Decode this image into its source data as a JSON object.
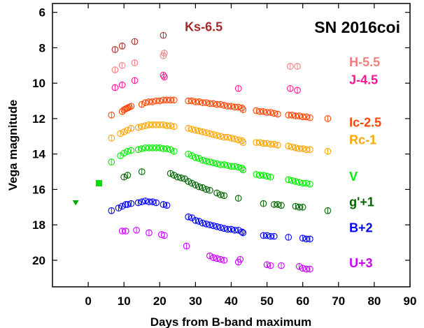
{
  "chart_data": {
    "type": "scatter",
    "title": "SN 2016coi",
    "xlabel": "Days from B-band maximum",
    "ylabel": "Vega magnitude",
    "xlim": [
      -10,
      90
    ],
    "ylim": [
      21.5,
      5.5
    ],
    "y_inverted": true,
    "grid": false,
    "legend": "right-side labels",
    "xticks": [
      0,
      10,
      20,
      30,
      40,
      50,
      60,
      70,
      80,
      90
    ],
    "yticks": [
      6,
      8,
      10,
      12,
      14,
      16,
      18,
      20
    ],
    "series": [
      {
        "name": "Ks-6.5",
        "color": "#a52a2a",
        "marker": "circle-open",
        "points": [
          [
            7.5,
            8.1
          ],
          [
            9.5,
            7.9
          ],
          [
            13,
            7.65
          ],
          [
            21,
            7.3
          ]
        ]
      },
      {
        "name": "H-5.5",
        "color": "#f08080",
        "marker": "circle-open",
        "points": [
          [
            7.5,
            9.25
          ],
          [
            9.5,
            9.0
          ],
          [
            13,
            8.85
          ],
          [
            21,
            8.45
          ],
          [
            21.3,
            8.3
          ],
          [
            56.5,
            9.05
          ],
          [
            58.5,
            9.05
          ]
        ]
      },
      {
        "name": "J-4.5",
        "color": "#ff1493",
        "marker": "circle-open",
        "points": [
          [
            7.5,
            10.25
          ],
          [
            9.5,
            10.1
          ],
          [
            13,
            9.85
          ],
          [
            21,
            9.55
          ],
          [
            21.3,
            9.65
          ],
          [
            42,
            10.3
          ],
          [
            56.5,
            10.3
          ],
          [
            58.5,
            10.4
          ]
        ]
      },
      {
        "name": "Ic-2.5",
        "color": "#ff4500",
        "marker": "circle-open",
        "points": [
          [
            6.5,
            11.8
          ],
          [
            9.5,
            11.6
          ],
          [
            10,
            11.5
          ],
          [
            10.5,
            11.45
          ],
          [
            11,
            11.4
          ],
          [
            11.5,
            11.35
          ],
          [
            12,
            11.3
          ],
          [
            15,
            11.2
          ],
          [
            16,
            11.1
          ],
          [
            17,
            11.05
          ],
          [
            18,
            11.05
          ],
          [
            19,
            11.0
          ],
          [
            20,
            11.0
          ],
          [
            21,
            10.95
          ],
          [
            22,
            10.95
          ],
          [
            23,
            10.95
          ],
          [
            24,
            10.95
          ],
          [
            28,
            11.0
          ],
          [
            29,
            11.0
          ],
          [
            30,
            11.05
          ],
          [
            31,
            11.05
          ],
          [
            32,
            11.1
          ],
          [
            33,
            11.1
          ],
          [
            34,
            11.15
          ],
          [
            35,
            11.15
          ],
          [
            36,
            11.2
          ],
          [
            37,
            11.2
          ],
          [
            38,
            11.25
          ],
          [
            39,
            11.3
          ],
          [
            40,
            11.3
          ],
          [
            41,
            11.35
          ],
          [
            42,
            11.35
          ],
          [
            43,
            11.4
          ],
          [
            43.3,
            11.5
          ],
          [
            47,
            11.55
          ],
          [
            48,
            11.6
          ],
          [
            49,
            11.6
          ],
          [
            50,
            11.65
          ],
          [
            51,
            11.65
          ],
          [
            52,
            11.7
          ],
          [
            53,
            11.75
          ],
          [
            56,
            11.8
          ],
          [
            57,
            11.8
          ],
          [
            58,
            11.85
          ],
          [
            59,
            11.85
          ],
          [
            60,
            11.9
          ],
          [
            61,
            11.9
          ],
          [
            62,
            11.95
          ],
          [
            67,
            12.0
          ]
        ]
      },
      {
        "name": "Rc-1",
        "color": "#ffa500",
        "marker": "circle-open",
        "points": [
          [
            6.5,
            13.1
          ],
          [
            9,
            12.85
          ],
          [
            10,
            12.75
          ],
          [
            11,
            12.65
          ],
          [
            12,
            12.55
          ],
          [
            14,
            12.5
          ],
          [
            15,
            12.45
          ],
          [
            16,
            12.4
          ],
          [
            17,
            12.35
          ],
          [
            18,
            12.35
          ],
          [
            19,
            12.35
          ],
          [
            20,
            12.35
          ],
          [
            21,
            12.35
          ],
          [
            22,
            12.4
          ],
          [
            23,
            12.4
          ],
          [
            24,
            12.45
          ],
          [
            28,
            12.55
          ],
          [
            29,
            12.6
          ],
          [
            30,
            12.65
          ],
          [
            31,
            12.7
          ],
          [
            32,
            12.75
          ],
          [
            33,
            12.8
          ],
          [
            34,
            12.85
          ],
          [
            35,
            12.9
          ],
          [
            36,
            12.95
          ],
          [
            37,
            13.0
          ],
          [
            38,
            13.05
          ],
          [
            39,
            13.05
          ],
          [
            40,
            13.1
          ],
          [
            41,
            13.15
          ],
          [
            42,
            13.2
          ],
          [
            43,
            13.25
          ],
          [
            43.3,
            13.35
          ],
          [
            47,
            13.35
          ],
          [
            48,
            13.35
          ],
          [
            49,
            13.4
          ],
          [
            50,
            13.4
          ],
          [
            51,
            13.45
          ],
          [
            52,
            13.45
          ],
          [
            53,
            13.5
          ],
          [
            56,
            13.55
          ],
          [
            57,
            13.6
          ],
          [
            58,
            13.65
          ],
          [
            59,
            13.7
          ],
          [
            60,
            13.7
          ],
          [
            61,
            13.75
          ],
          [
            62,
            13.75
          ],
          [
            67,
            13.85
          ]
        ]
      },
      {
        "name": "V",
        "color": "#00ee00",
        "marker": "circle-open",
        "points": [
          [
            6.5,
            14.45
          ],
          [
            9,
            14.1
          ],
          [
            10,
            13.95
          ],
          [
            11,
            13.85
          ],
          [
            12,
            13.8
          ],
          [
            14,
            13.75
          ],
          [
            15,
            13.7
          ],
          [
            16,
            13.65
          ],
          [
            17,
            13.65
          ],
          [
            18,
            13.65
          ],
          [
            19,
            13.65
          ],
          [
            20,
            13.65
          ],
          [
            21,
            13.7
          ],
          [
            22,
            13.7
          ],
          [
            23,
            13.75
          ],
          [
            24,
            13.85
          ],
          [
            28,
            14.0
          ],
          [
            29,
            14.1
          ],
          [
            30,
            14.2
          ],
          [
            31,
            14.25
          ],
          [
            32,
            14.35
          ],
          [
            33,
            14.4
          ],
          [
            34,
            14.45
          ],
          [
            35,
            14.5
          ],
          [
            36,
            14.55
          ],
          [
            37,
            14.6
          ],
          [
            38,
            14.6
          ],
          [
            39,
            14.65
          ],
          [
            40,
            14.7
          ],
          [
            41,
            14.7
          ],
          [
            42,
            14.75
          ],
          [
            43,
            14.8
          ],
          [
            43.3,
            14.9
          ],
          [
            47,
            15.15
          ],
          [
            48,
            15.2
          ],
          [
            49,
            15.2
          ],
          [
            50,
            15.25
          ],
          [
            51,
            15.3
          ],
          [
            56,
            15.45
          ],
          [
            57,
            15.5
          ],
          [
            58,
            15.55
          ],
          [
            59,
            15.6
          ],
          [
            60,
            15.65
          ],
          [
            61,
            15.65
          ],
          [
            62,
            15.7
          ]
        ]
      },
      {
        "name": "g'+1",
        "color": "#006400",
        "marker": "circle-open",
        "points": [
          [
            10,
            15.3
          ],
          [
            11,
            15.2
          ],
          [
            15,
            15.0
          ],
          [
            23,
            15.1
          ],
          [
            24,
            15.2
          ],
          [
            25,
            15.3
          ],
          [
            26,
            15.35
          ],
          [
            27,
            15.4
          ],
          [
            28,
            15.55
          ],
          [
            29,
            15.65
          ],
          [
            30,
            15.75
          ],
          [
            31,
            15.85
          ],
          [
            32,
            15.9
          ],
          [
            33,
            16.0
          ],
          [
            34,
            16.05
          ],
          [
            36,
            16.2
          ],
          [
            37,
            16.3
          ],
          [
            38,
            16.35
          ],
          [
            42,
            16.5
          ],
          [
            49,
            16.8
          ],
          [
            52,
            16.85
          ],
          [
            53,
            16.85
          ],
          [
            54,
            16.9
          ],
          [
            58,
            16.95
          ],
          [
            59,
            17.0
          ],
          [
            60,
            17.0
          ],
          [
            67,
            17.2
          ]
        ]
      },
      {
        "name": "B+2",
        "color": "#0000ff",
        "marker": "circle-open",
        "points": [
          [
            6.5,
            17.2
          ],
          [
            8.5,
            17.05
          ],
          [
            9.5,
            16.95
          ],
          [
            10.5,
            16.85
          ],
          [
            11,
            16.85
          ],
          [
            12,
            16.8
          ],
          [
            14,
            16.75
          ],
          [
            15,
            16.7
          ],
          [
            16,
            16.65
          ],
          [
            17,
            16.7
          ],
          [
            18,
            16.7
          ],
          [
            19,
            16.75
          ],
          [
            21,
            16.85
          ],
          [
            22,
            16.9
          ],
          [
            28,
            17.55
          ],
          [
            29,
            17.6
          ],
          [
            30,
            17.75
          ],
          [
            31,
            17.8
          ],
          [
            32,
            17.9
          ],
          [
            33,
            17.95
          ],
          [
            34,
            18.0
          ],
          [
            35,
            18.05
          ],
          [
            36,
            18.1
          ],
          [
            37,
            18.15
          ],
          [
            38,
            18.2
          ],
          [
            39,
            18.25
          ],
          [
            40,
            18.25
          ],
          [
            41,
            18.3
          ],
          [
            42,
            18.3
          ],
          [
            43,
            18.4
          ],
          [
            43.3,
            18.45
          ],
          [
            49,
            18.6
          ],
          [
            50,
            18.6
          ],
          [
            51,
            18.65
          ],
          [
            52,
            18.65
          ],
          [
            56,
            18.7
          ],
          [
            60,
            18.75
          ],
          [
            61,
            18.8
          ],
          [
            62,
            18.8
          ]
        ]
      },
      {
        "name": "U+3",
        "color": "#cc00ff",
        "marker": "circle-open",
        "points": [
          [
            9.5,
            18.35
          ],
          [
            10.5,
            18.35
          ],
          [
            13.5,
            18.3
          ],
          [
            17,
            18.45
          ],
          [
            20.5,
            18.55
          ],
          [
            21.3,
            18.6
          ],
          [
            27.5,
            19.2
          ],
          [
            34,
            19.75
          ],
          [
            35,
            19.85
          ],
          [
            36,
            19.9
          ],
          [
            37,
            19.95
          ],
          [
            38,
            20.0
          ],
          [
            42,
            20.1
          ],
          [
            42.5,
            19.95
          ],
          [
            50,
            20.25
          ],
          [
            51,
            20.3
          ],
          [
            54,
            20.3
          ],
          [
            59,
            20.35
          ],
          [
            60,
            20.45
          ],
          [
            61,
            20.5
          ],
          [
            62,
            20.5
          ]
        ]
      },
      {
        "name": "",
        "color": "#00dd00",
        "marker": "square-filled",
        "points": [
          [
            3,
            15.65
          ]
        ]
      },
      {
        "name": "",
        "color": "#00aa00",
        "marker": "triangle-down",
        "points": [
          [
            -3.5,
            16.75
          ]
        ]
      }
    ],
    "annotations": [
      {
        "text": "Ks-6.5",
        "color": "#a52a2a",
        "x": 27,
        "y": 7.05,
        "anchor": "start"
      },
      {
        "text": "H-5.5",
        "color": "#f08080",
        "x": 73,
        "y": 9.05,
        "anchor": "start"
      },
      {
        "text": "J-4.5",
        "color": "#ff1493",
        "x": 73,
        "y": 10.05,
        "anchor": "start"
      },
      {
        "text": "Ic-2.5",
        "color": "#ff4500",
        "x": 73,
        "y": 12.45,
        "anchor": "start"
      },
      {
        "text": "Rc-1",
        "color": "#ffa500",
        "x": 73,
        "y": 13.45,
        "anchor": "start"
      },
      {
        "text": "V",
        "color": "#00ee00",
        "x": 73,
        "y": 15.5,
        "anchor": "start"
      },
      {
        "text": "g'+1",
        "color": "#006400",
        "x": 73,
        "y": 16.95,
        "anchor": "start"
      },
      {
        "text": "B+2",
        "color": "#0000ff",
        "x": 73,
        "y": 18.4,
        "anchor": "start"
      },
      {
        "text": "U+3",
        "color": "#cc00ff",
        "x": 73,
        "y": 20.4,
        "anchor": "start"
      }
    ]
  }
}
